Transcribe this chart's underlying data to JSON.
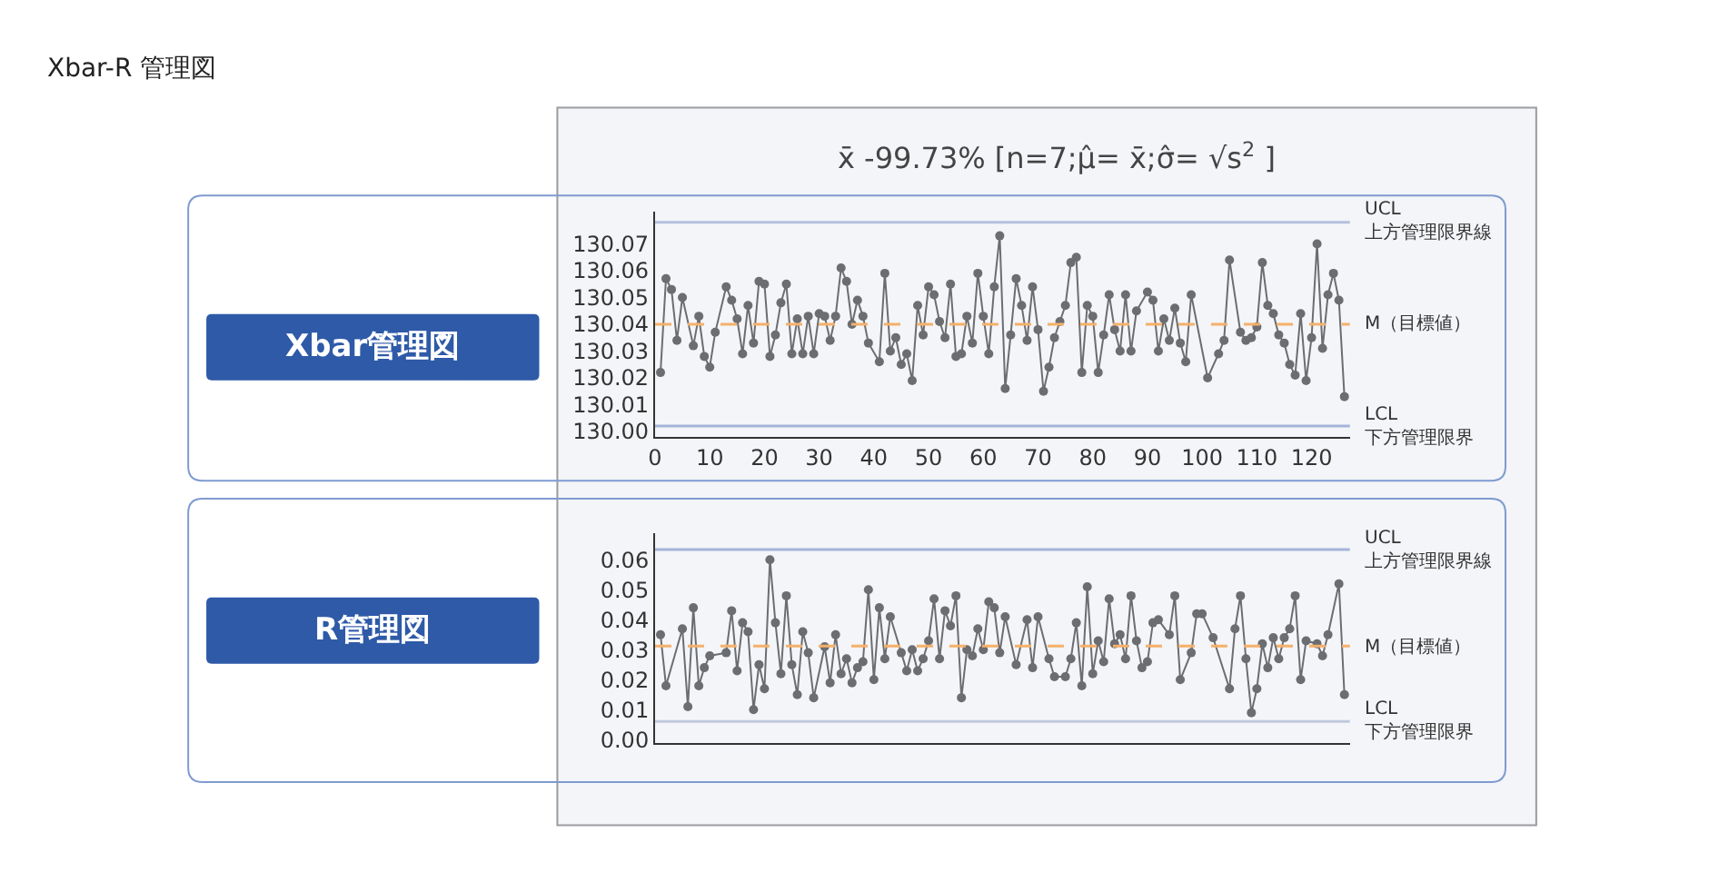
{
  "chart_data": [
    {
      "type": "line",
      "title": "Xbar管理図",
      "subtitle": "x̄ -99.73% [n=7;μ̂= x̄;σ̂= √s$^{2}$ ]",
      "annotations": [
        "Xbar-R 管理図"
      ],
      "marker": "circle",
      "line_style": "solid",
      "xlim": [
        0,
        127
      ],
      "xticks": [
        0,
        10,
        20,
        30,
        40,
        50,
        60,
        70,
        80,
        90,
        100,
        110,
        120
      ],
      "ylim": [
        129.998,
        130.082
      ],
      "yticks": [
        {
          "value": 130.0,
          "label": "130.00"
        },
        {
          "value": 130.01,
          "label": "130.01"
        },
        {
          "value": 130.02,
          "label": "130.02"
        },
        {
          "value": 130.03,
          "label": "130.03"
        },
        {
          "value": 130.04,
          "label": "130.04"
        },
        {
          "value": 130.05,
          "label": "130.05"
        },
        {
          "value": 130.06,
          "label": "130.06"
        },
        {
          "value": 130.07,
          "label": "130.07"
        }
      ],
      "ref_lines": [
        {
          "axis": "y",
          "value": 130.078,
          "label": "UCL\n上方管理限界線",
          "color": "#b4c0dc",
          "line_style": "solid"
        },
        {
          "axis": "y",
          "value": 130.04,
          "label": "M（目標値）",
          "color": "#f5b06a",
          "line_style": "dashed"
        },
        {
          "axis": "y",
          "value": 130.002,
          "label": "LCL\n下方管理限界",
          "color": "#a4b4d8",
          "line_style": "solid"
        }
      ],
      "series": [
        {
          "color": "#6b6d71",
          "x": [
            1,
            2,
            3,
            4,
            5,
            7,
            8,
            9,
            10,
            11,
            13,
            14,
            15,
            16,
            17,
            18,
            19,
            20,
            21,
            22,
            23,
            24,
            25,
            26,
            27,
            28,
            29,
            30,
            31,
            32,
            33,
            34,
            35,
            36,
            37,
            38,
            39,
            41,
            42,
            43,
            44,
            45,
            46,
            47,
            48,
            49,
            50,
            51,
            52,
            53,
            54,
            55,
            56,
            57,
            58,
            59,
            60,
            61,
            62,
            63,
            64,
            65,
            66,
            67,
            68,
            69,
            70,
            71,
            72,
            73,
            74,
            75,
            76,
            77,
            78,
            79,
            80,
            81,
            82,
            83,
            84,
            85,
            86,
            87,
            88,
            90,
            91,
            92,
            93,
            94,
            95,
            96,
            97,
            98,
            101,
            103,
            104,
            105,
            107,
            108,
            109,
            110,
            111,
            112,
            113,
            114,
            115,
            116,
            117,
            118,
            119,
            120,
            121,
            122,
            123,
            124,
            125,
            126
          ],
          "values": [
            130.022,
            130.057,
            130.053,
            130.034,
            130.05,
            130.032,
            130.043,
            130.028,
            130.024,
            130.037,
            130.054,
            130.049,
            130.042,
            130.029,
            130.047,
            130.033,
            130.056,
            130.055,
            130.028,
            130.036,
            130.048,
            130.055,
            130.029,
            130.042,
            130.029,
            130.043,
            130.029,
            130.044,
            130.043,
            130.034,
            130.043,
            130.061,
            130.056,
            130.04,
            130.049,
            130.043,
            130.033,
            130.026,
            130.059,
            130.03,
            130.035,
            130.025,
            130.029,
            130.019,
            130.047,
            130.036,
            130.054,
            130.051,
            130.041,
            130.035,
            130.055,
            130.028,
            130.029,
            130.043,
            130.033,
            130.059,
            130.043,
            130.029,
            130.054,
            130.073,
            130.016,
            130.036,
            130.057,
            130.047,
            130.034,
            130.054,
            130.038,
            130.015,
            130.024,
            130.035,
            130.041,
            130.047,
            130.063,
            130.065,
            130.022,
            130.047,
            130.043,
            130.022,
            130.036,
            130.051,
            130.038,
            130.03,
            130.051,
            130.03,
            130.045,
            130.052,
            130.049,
            130.03,
            130.042,
            130.034,
            130.046,
            130.033,
            130.026,
            130.051,
            130.02,
            130.029,
            130.034,
            130.064,
            130.037,
            130.034,
            130.035,
            130.039,
            130.063,
            130.047,
            130.044,
            130.036,
            130.033,
            130.025,
            130.021,
            130.044,
            130.019,
            130.035,
            130.07,
            130.031,
            130.051,
            130.059,
            130.049,
            130.013
          ]
        }
      ]
    },
    {
      "type": "line",
      "title": "R管理図",
      "marker": "circle",
      "line_style": "solid",
      "tick_labels": "y",
      "xlim": [
        0,
        127
      ],
      "ylim": [
        -0.001,
        0.069
      ],
      "yticks": [
        {
          "value": 0,
          "label": "0.00"
        },
        0.01,
        {
          "value": 0.02,
          "label": "0.02"
        },
        0.03,
        0.04,
        0.05,
        0.06
      ],
      "ref_lines": [
        {
          "axis": "y",
          "value": 0.0634,
          "label": "UCL\n上方管理限界線",
          "color": "#a4b4d8",
          "line_style": "solid"
        },
        {
          "axis": "y",
          "value": 0.0312,
          "label": "M（目標値）",
          "color": "#f5b06a",
          "line_style": "dashed"
        },
        {
          "axis": "y",
          "value": 0.0061,
          "label": "LCL\n下方管理限界",
          "color": "#c0cade",
          "line_style": "solid"
        }
      ],
      "series": [
        {
          "color": "#6b6d71",
          "x": [
            1,
            2,
            5,
            6,
            7,
            8,
            9,
            10,
            13,
            14,
            15,
            16,
            17,
            18,
            19,
            20,
            21,
            22,
            23,
            24,
            25,
            26,
            27,
            28,
            29,
            31,
            32,
            33,
            34,
            35,
            36,
            37,
            38,
            39,
            40,
            41,
            42,
            43,
            45,
            46,
            47,
            48,
            49,
            50,
            51,
            52,
            53,
            54,
            55,
            56,
            57,
            58,
            59,
            60,
            61,
            62,
            63,
            64,
            66,
            68,
            69,
            70,
            72,
            73,
            75,
            76,
            77,
            78,
            79,
            80,
            81,
            82,
            83,
            84,
            85,
            86,
            87,
            88,
            89,
            90,
            91,
            92,
            94,
            95,
            96,
            98,
            99,
            100,
            102,
            105,
            106,
            107,
            108,
            109,
            110,
            111,
            112,
            113,
            114,
            115,
            116,
            117,
            118,
            119,
            121,
            122,
            123,
            125,
            126
          ],
          "values": [
            0.035,
            0.018,
            0.037,
            0.011,
            0.044,
            0.018,
            0.024,
            0.028,
            0.029,
            0.043,
            0.023,
            0.039,
            0.036,
            0.01,
            0.025,
            0.017,
            0.06,
            0.039,
            0.022,
            0.048,
            0.025,
            0.015,
            0.036,
            0.029,
            0.014,
            0.031,
            0.019,
            0.035,
            0.022,
            0.027,
            0.019,
            0.024,
            0.026,
            0.05,
            0.02,
            0.044,
            0.027,
            0.041,
            0.029,
            0.023,
            0.03,
            0.023,
            0.027,
            0.033,
            0.047,
            0.027,
            0.043,
            0.038,
            0.048,
            0.014,
            0.03,
            0.028,
            0.037,
            0.03,
            0.046,
            0.044,
            0.029,
            0.041,
            0.025,
            0.04,
            0.024,
            0.041,
            0.027,
            0.021,
            0.021,
            0.027,
            0.039,
            0.018,
            0.051,
            0.022,
            0.033,
            0.026,
            0.047,
            0.032,
            0.035,
            0.027,
            0.048,
            0.033,
            0.024,
            0.026,
            0.039,
            0.04,
            0.035,
            0.048,
            0.02,
            0.029,
            0.042,
            0.042,
            0.034,
            0.017,
            0.037,
            0.048,
            0.027,
            0.009,
            0.017,
            0.032,
            0.024,
            0.034,
            0.027,
            0.034,
            0.037,
            0.048,
            0.02,
            0.033,
            0.032,
            0.028,
            0.035,
            0.052,
            0.015
          ]
        }
      ]
    }
  ]
}
